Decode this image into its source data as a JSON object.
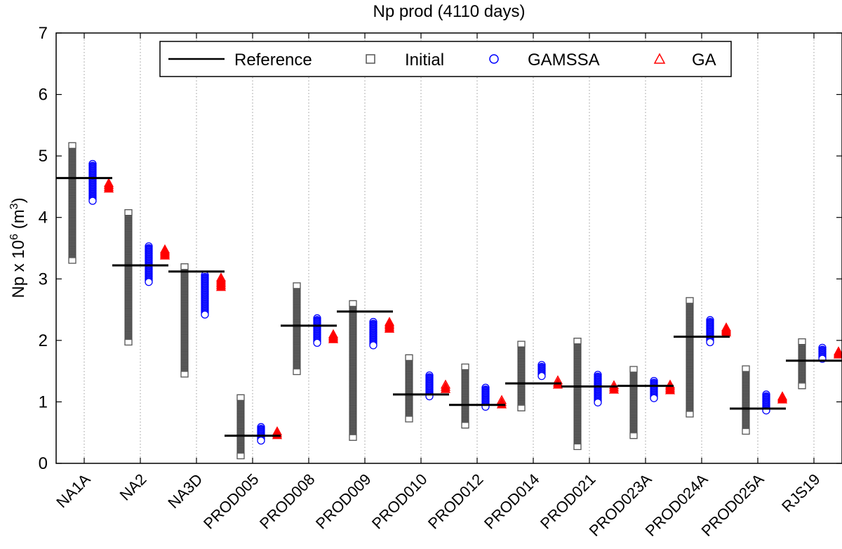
{
  "chart_data": {
    "type": "scatter",
    "title": "Np prod (4110 days)",
    "ylabel": {
      "base": "Np x 10",
      "exp": "6",
      "unit_open": " (m",
      "unit_exp": "3",
      "unit_close": ")"
    },
    "ylim": [
      0,
      7
    ],
    "yticks": [
      "0",
      "1",
      "2",
      "3",
      "4",
      "5",
      "6",
      "7"
    ],
    "grid": "vertical dotted",
    "legend_position": "top",
    "categories": [
      "NA1A",
      "NA2",
      "NA3D",
      "PROD005",
      "PROD008",
      "PROD009",
      "PROD010",
      "PROD012",
      "PROD014",
      "PROD021",
      "PROD023A",
      "PROD024A",
      "PROD025A",
      "RJS19"
    ],
    "series": [
      {
        "name": "Reference",
        "marker": "line",
        "color": "#000000",
        "values": [
          4.64,
          3.22,
          3.12,
          0.45,
          2.24,
          2.47,
          1.12,
          0.95,
          1.3,
          1.25,
          1.26,
          2.06,
          0.89,
          1.67
        ]
      },
      {
        "name": "Initial",
        "marker": "square",
        "color": "#555555",
        "ranges": [
          [
            3.3,
            5.17
          ],
          [
            1.97,
            4.08
          ],
          [
            1.45,
            3.2
          ],
          [
            0.12,
            1.07
          ],
          [
            1.49,
            2.89
          ],
          [
            0.42,
            2.6
          ],
          [
            0.72,
            1.72
          ],
          [
            0.62,
            1.57
          ],
          [
            0.9,
            1.94
          ],
          [
            0.27,
            1.99
          ],
          [
            0.45,
            1.53
          ],
          [
            0.8,
            2.65
          ],
          [
            0.52,
            1.54
          ],
          [
            1.26,
            1.98
          ]
        ]
      },
      {
        "name": "GAMSSA",
        "marker": "circle",
        "color": "#0000ff",
        "ranges": [
          [
            4.27,
            4.87
          ],
          [
            2.95,
            3.53
          ],
          [
            2.42,
            3.06
          ],
          [
            0.37,
            0.59
          ],
          [
            1.96,
            2.36
          ],
          [
            1.92,
            2.3
          ],
          [
            1.09,
            1.43
          ],
          [
            0.92,
            1.23
          ],
          [
            1.42,
            1.6
          ],
          [
            0.99,
            1.44
          ],
          [
            1.06,
            1.34
          ],
          [
            1.97,
            2.33
          ],
          [
            0.86,
            1.12
          ],
          [
            1.7,
            1.88
          ]
        ]
      },
      {
        "name": "GA",
        "marker": "triangle",
        "color": "#ff0000",
        "ranges": [
          [
            4.47,
            4.56
          ],
          [
            3.38,
            3.48
          ],
          [
            2.87,
            3.02
          ],
          [
            0.46,
            0.52
          ],
          [
            2.02,
            2.1
          ],
          [
            2.19,
            2.3
          ],
          [
            1.21,
            1.28
          ],
          [
            0.96,
            1.03
          ],
          [
            1.28,
            1.35
          ],
          [
            1.2,
            1.27
          ],
          [
            1.19,
            1.28
          ],
          [
            2.13,
            2.21
          ],
          [
            1.04,
            1.09
          ],
          [
            1.77,
            1.82
          ]
        ]
      }
    ]
  }
}
